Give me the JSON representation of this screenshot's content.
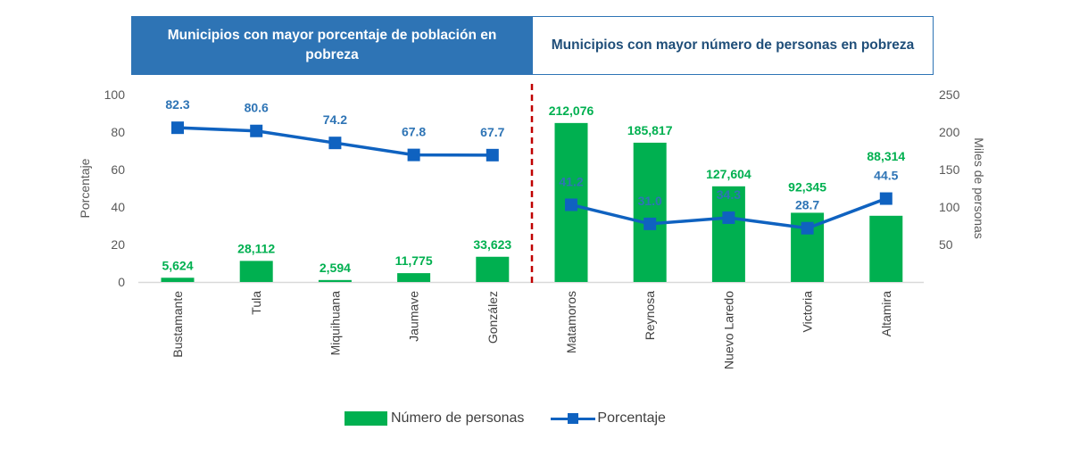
{
  "headers": {
    "left": "Municipios con mayor porcentaje de población en pobreza",
    "right": "Municipios con mayor número de personas en pobreza"
  },
  "legend": {
    "bars": "Número de personas",
    "line": "Porcentaje"
  },
  "colors": {
    "bars": "#00b050",
    "line": "#0f62c0",
    "line_labels": "#2e74b5",
    "divider": "#c00000",
    "header_fill": "#2e74b5"
  },
  "chart_data": {
    "type": "bar+line",
    "categories": [
      "Bustamante",
      "Tula",
      "Miquihuana",
      "Jaumave",
      "González",
      "Matamoros",
      "Reynosa",
      "Nuevo Laredo",
      "Victoria",
      "Altamira"
    ],
    "series": [
      {
        "name": "Número de personas",
        "type": "bar",
        "axis": "right",
        "values": [
          5624,
          28112,
          2594,
          11775,
          33623,
          212076,
          185817,
          127604,
          92345,
          88314
        ],
        "labels": [
          "5,624",
          "28,112",
          "2,594",
          "11,775",
          "33,623",
          "212,076",
          "185,817",
          "127,604",
          "92,345",
          "88,314"
        ]
      },
      {
        "name": "Porcentaje",
        "type": "line",
        "axis": "left",
        "segments": [
          [
            0,
            4
          ],
          [
            5,
            9
          ]
        ],
        "values": [
          82.3,
          80.6,
          74.2,
          67.8,
          67.7,
          41.2,
          31.0,
          34.3,
          28.7,
          44.5
        ],
        "labels": [
          "82.3",
          "80.6",
          "74.2",
          "67.8",
          "67.7",
          "41.2",
          "31.0",
          "34.3",
          "28.7",
          "44.5"
        ]
      }
    ],
    "y_left": {
      "label": "Porcentaje",
      "range": [
        0,
        100
      ],
      "ticks": [
        "0",
        "20",
        "40",
        "60",
        "80",
        "100"
      ]
    },
    "y_right": {
      "label": "Miles de personas",
      "range": [
        0,
        250
      ],
      "ticks": [
        "50",
        "100",
        "150",
        "200",
        "250"
      ]
    },
    "divider_after_index": 4,
    "grid": false,
    "legend_position": "bottom"
  }
}
